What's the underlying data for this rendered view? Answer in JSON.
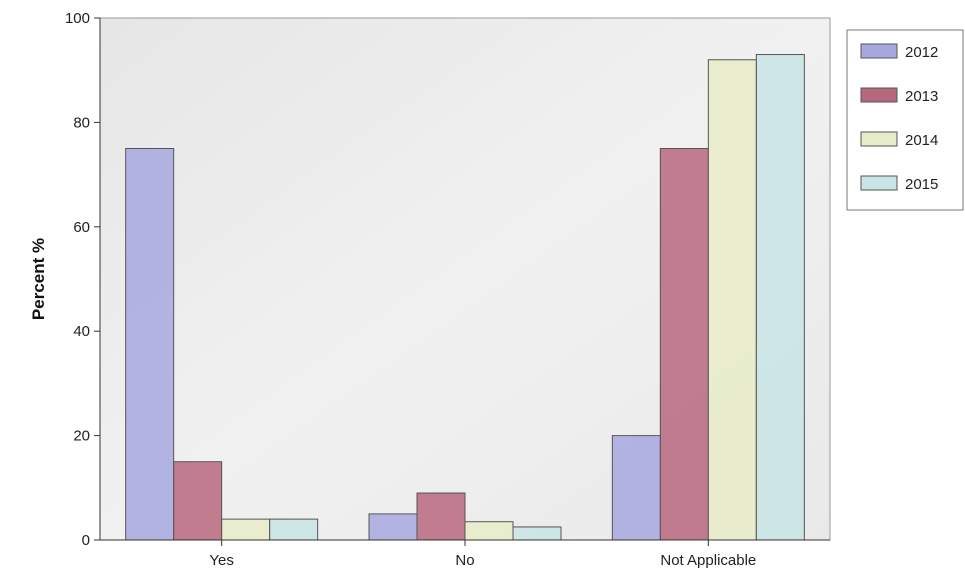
{
  "chart_data": {
    "type": "bar",
    "title": "",
    "xlabel": "",
    "ylabel": "Percent %",
    "ylim": [
      0,
      100
    ],
    "yticks": [
      0,
      20,
      40,
      60,
      80,
      100
    ],
    "categories": [
      "Yes",
      "No",
      "Not Applicable"
    ],
    "series": [
      {
        "name": "2012",
        "color": "#a8a8e0",
        "values": [
          75,
          5,
          20
        ]
      },
      {
        "name": "2013",
        "color": "#b8687e",
        "values": [
          15,
          9,
          75
        ]
      },
      {
        "name": "2014",
        "color": "#e8ecc8",
        "values": [
          4,
          3.5,
          92
        ]
      },
      {
        "name": "2015",
        "color": "#c8e4e4",
        "values": [
          4,
          2.5,
          93
        ]
      }
    ],
    "legend_position": "right",
    "grid": false
  }
}
